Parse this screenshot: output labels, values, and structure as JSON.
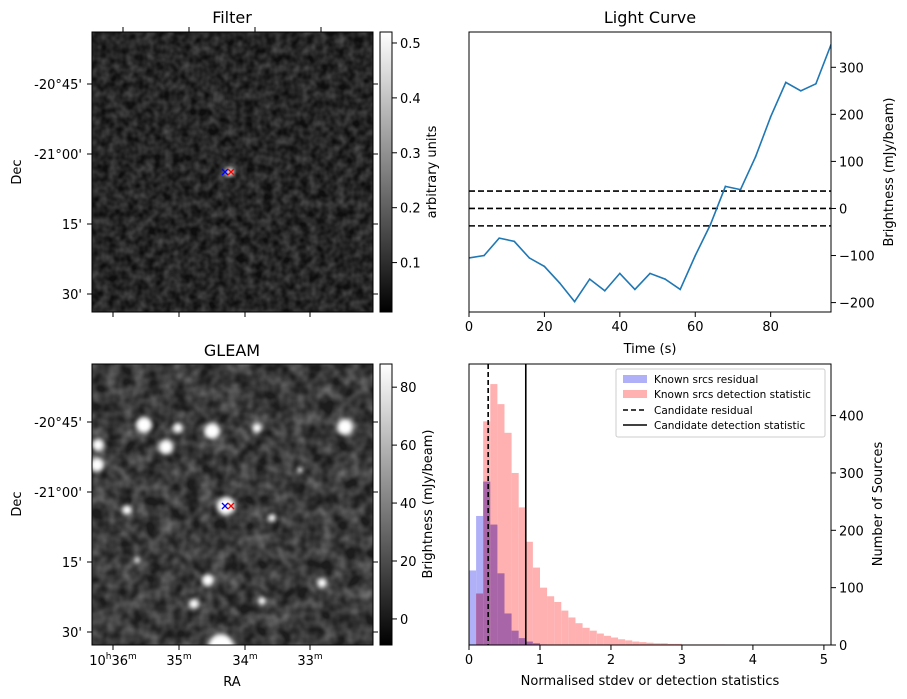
{
  "panels": {
    "filter": {
      "title": "Filter",
      "ylabel": "Dec",
      "colorbar_label": "arbitrary units",
      "colorbar_ticks": [
        "0.1",
        "0.2",
        "0.3",
        "0.4",
        "0.5"
      ],
      "colorbar_range": [
        0.01,
        0.52
      ],
      "dec_ticks": [
        "-20°45'",
        "-21°00'",
        "15'",
        "30'"
      ],
      "marker_colors": [
        "#0000ff",
        "#ff0000"
      ]
    },
    "gleam": {
      "title": "GLEAM",
      "ylabel": "Dec",
      "xlabel": "RA",
      "colorbar_label": "Brightness (mJy/beam)",
      "colorbar_ticks": [
        "0",
        "20",
        "40",
        "60",
        "80"
      ],
      "colorbar_range": [
        -9,
        88
      ],
      "dec_ticks": [
        "-20°45'",
        "-21°00'",
        "15'",
        "30'"
      ],
      "ra_ticks": [
        {
          "base": "10",
          "h": "h",
          "m": "36",
          "unit": "m"
        },
        {
          "base": "35",
          "h": "",
          "m": "",
          "unit": "m"
        },
        {
          "base": "34",
          "h": "",
          "m": "",
          "unit": "m"
        },
        {
          "base": "33",
          "h": "",
          "m": "",
          "unit": "m"
        }
      ],
      "marker_colors": [
        "#0000ff",
        "#ff0000"
      ]
    },
    "lightcurve": {
      "title": "Light Curve",
      "xlabel": "Time (s)",
      "ylabel": "Brightness (mJy/beam)",
      "line_color": "#1f77b4"
    },
    "histogram": {
      "xlabel": "Normalised stdev or detection statistics",
      "ylabel": "Number of Sources",
      "legend": [
        "Known srcs residual",
        "Known srcs detection statistic",
        "Candidate residual",
        "Candidate detection statistic"
      ],
      "colors": {
        "residual": "#b0b0f8",
        "detection": "#ffb0b0",
        "overlap": "#a866a8"
      }
    }
  },
  "chart_data": [
    {
      "type": "line",
      "title": "Light Curve",
      "xlabel": "Time (s)",
      "ylabel": "Brightness (mJy/beam)",
      "xlim": [
        0,
        96
      ],
      "ylim": [
        -220,
        375
      ],
      "x_ticks": [
        0,
        20,
        40,
        60,
        80
      ],
      "y_ticks": [
        -200,
        -100,
        0,
        100,
        200,
        300
      ],
      "x": [
        0,
        4,
        8,
        12,
        16,
        20,
        24,
        28,
        32,
        36,
        40,
        44,
        48,
        52,
        56,
        60,
        64,
        68,
        72,
        76,
        80,
        84,
        88,
        92,
        96
      ],
      "values": [
        -105,
        -100,
        -63,
        -70,
        -105,
        -123,
        -158,
        -198,
        -150,
        -175,
        -138,
        -172,
        -138,
        -150,
        -172,
        -100,
        -35,
        47,
        40,
        110,
        195,
        268,
        250,
        265,
        348
      ],
      "hlines": [
        37,
        0,
        -37
      ],
      "y_axis_side": "right"
    },
    {
      "type": "bar",
      "xlabel": "Normalised stdev or detection statistics",
      "ylabel": "Number of Sources",
      "xlim": [
        0,
        5.1
      ],
      "ylim": [
        0,
        490
      ],
      "x_ticks": [
        0,
        1,
        2,
        3,
        4,
        5
      ],
      "y_ticks": [
        0,
        100,
        200,
        300,
        400
      ],
      "y_axis_side": "right",
      "bin_width": 0.1,
      "series": [
        {
          "name": "Known srcs residual",
          "x": [
            0.0,
            0.1,
            0.2,
            0.3,
            0.4,
            0.5,
            0.6,
            0.7,
            0.8,
            0.9,
            1.0
          ],
          "values": [
            130,
            225,
            285,
            210,
            125,
            55,
            25,
            12,
            6,
            3,
            1
          ]
        },
        {
          "name": "Known srcs detection statistic",
          "x": [
            0.0,
            0.1,
            0.2,
            0.3,
            0.4,
            0.5,
            0.6,
            0.7,
            0.8,
            0.9,
            1.0,
            1.1,
            1.2,
            1.3,
            1.4,
            1.5,
            1.6,
            1.7,
            1.8,
            1.9,
            2.0,
            2.1,
            2.2,
            2.3,
            2.4,
            2.5,
            2.6,
            2.7,
            2.8,
            2.9,
            3.0,
            3.1,
            3.2,
            3.3,
            3.4,
            3.5
          ],
          "values": [
            0,
            90,
            390,
            455,
            420,
            370,
            300,
            240,
            180,
            135,
            100,
            85,
            75,
            60,
            48,
            38,
            30,
            25,
            20,
            16,
            13,
            10,
            8,
            6,
            5,
            4,
            3,
            3,
            2,
            2,
            1,
            1,
            1,
            1,
            1,
            1
          ]
        }
      ],
      "vlines": [
        {
          "name": "Candidate residual",
          "x": 0.27,
          "style": "dashed"
        },
        {
          "name": "Candidate detection statistic",
          "x": 0.8,
          "style": "solid"
        }
      ],
      "legend_position": "top-right"
    }
  ]
}
